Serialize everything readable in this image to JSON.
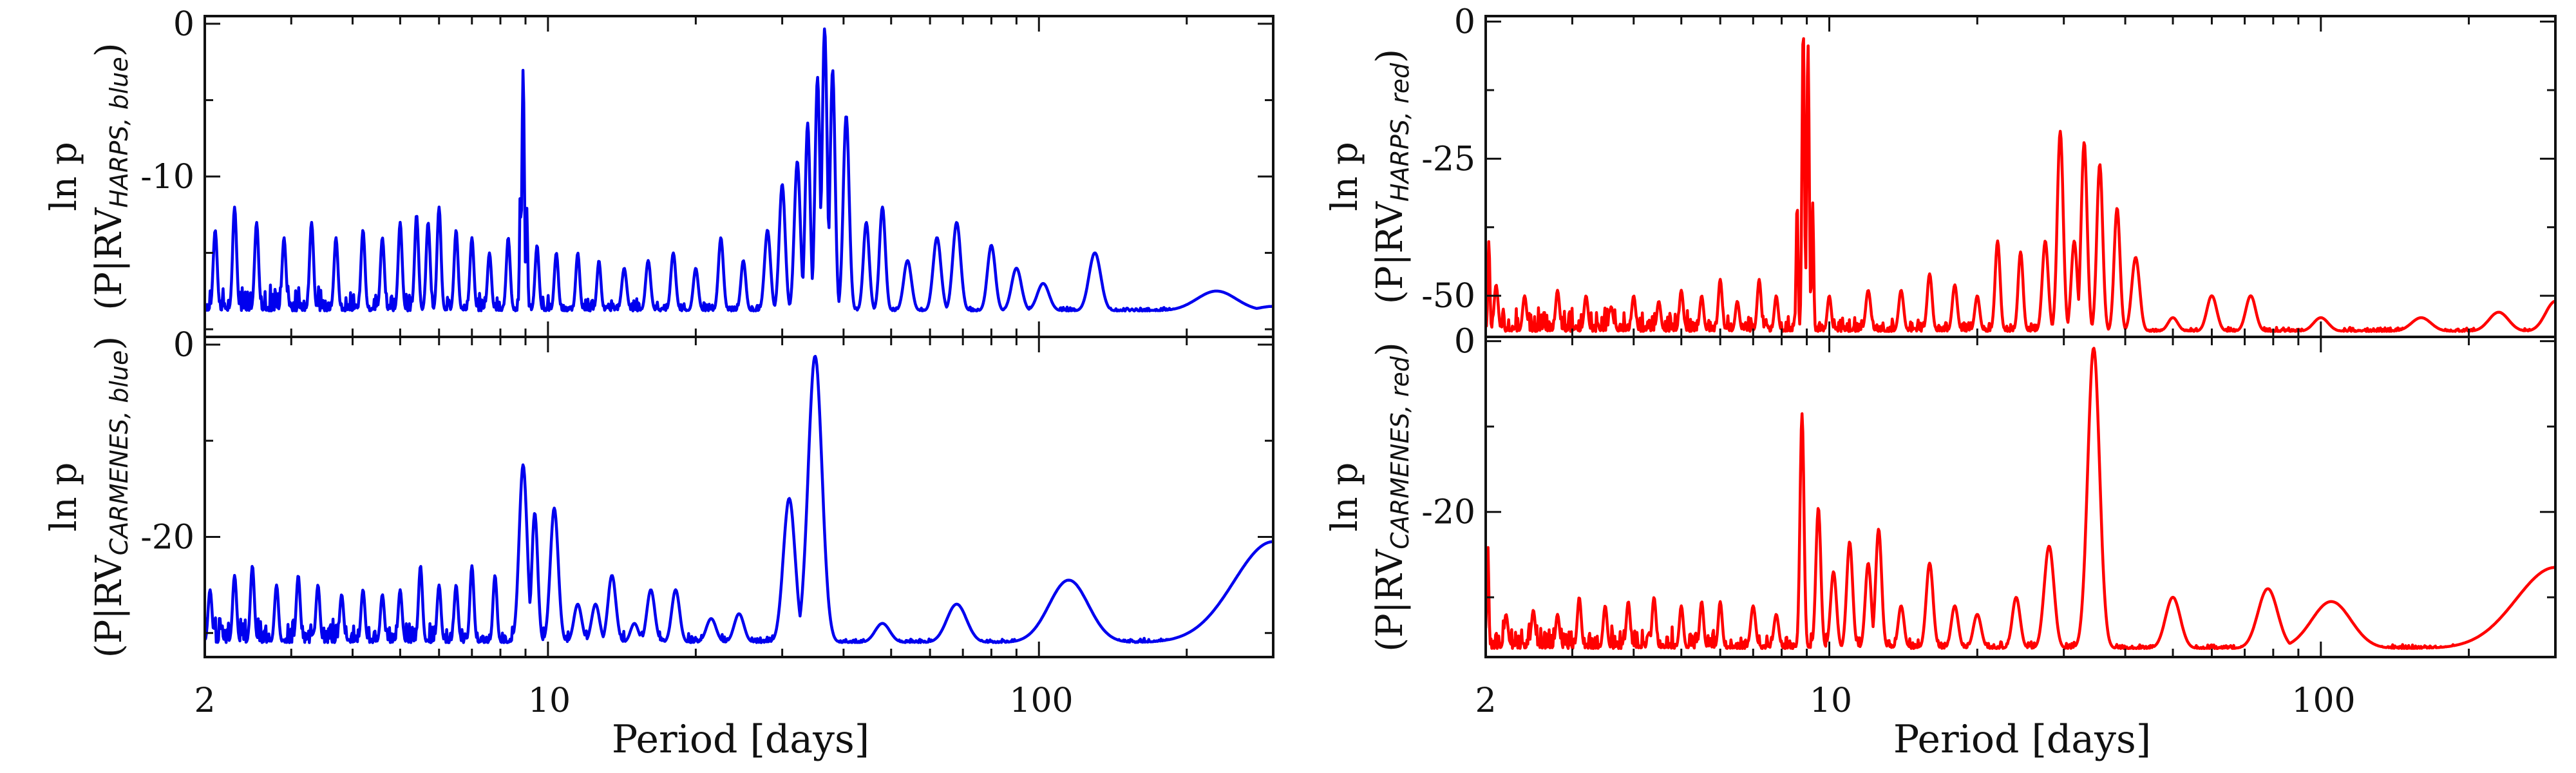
{
  "chart_data": [
    {
      "id": "harps_blue",
      "type": "line",
      "xscale": "log",
      "xlim": [
        2,
        300
      ],
      "ylim": [
        -20.5,
        0.5
      ],
      "yticks": [
        0,
        -10
      ],
      "ylabel_line1": "ln p",
      "ylabel_prefix": "(P|RV",
      "ylabel_sub": "HARPS, blue",
      "ylabel_suffix": ")",
      "color": "#0000ee",
      "series": [
        {
          "peaks": [
            [
              2.1,
              -13.5,
              0.004
            ],
            [
              2.3,
              -12.0,
              0.004
            ],
            [
              2.55,
              -13.0,
              0.004
            ],
            [
              2.9,
              -14.0,
              0.004
            ],
            [
              3.3,
              -13.0,
              0.004
            ],
            [
              3.7,
              -14.0,
              0.004
            ],
            [
              4.2,
              -13.5,
              0.004
            ],
            [
              4.6,
              -14.0,
              0.004
            ],
            [
              5.0,
              -13.0,
              0.004
            ],
            [
              5.4,
              -12.5,
              0.004
            ],
            [
              5.7,
              -13.0,
              0.004
            ],
            [
              6.0,
              -12.0,
              0.004
            ],
            [
              6.5,
              -13.5,
              0.004
            ],
            [
              7.0,
              -14.0,
              0.004
            ],
            [
              7.6,
              -15.0,
              0.004
            ],
            [
              8.3,
              -14.0,
              0.004
            ],
            [
              8.78,
              -11.0,
              0.0015
            ],
            [
              8.9,
              -3.0,
              0.0025
            ],
            [
              9.05,
              -12.0,
              0.002
            ],
            [
              9.5,
              -14.5,
              0.004
            ],
            [
              10.4,
              -15.0,
              0.004
            ],
            [
              11.5,
              -15.0,
              0.004
            ],
            [
              12.7,
              -15.5,
              0.004
            ],
            [
              14.3,
              -16.0,
              0.005
            ],
            [
              16.0,
              -15.5,
              0.005
            ],
            [
              18.0,
              -15.0,
              0.005
            ],
            [
              20.0,
              -16.0,
              0.005
            ],
            [
              22.5,
              -14.0,
              0.005
            ],
            [
              25.0,
              -15.5,
              0.005
            ],
            [
              28.0,
              -13.5,
              0.006
            ],
            [
              30.0,
              -10.5,
              0.006
            ],
            [
              32.2,
              -9.0,
              0.006
            ],
            [
              33.8,
              -6.5,
              0.005
            ],
            [
              35.4,
              -3.5,
              0.005
            ],
            [
              36.6,
              -0.3,
              0.005
            ],
            [
              38.0,
              -3.0,
              0.005
            ],
            [
              40.5,
              -6.0,
              0.006
            ],
            [
              44.5,
              -13.0,
              0.006
            ],
            [
              48.0,
              -12.0,
              0.006
            ],
            [
              54.0,
              -15.5,
              0.008
            ],
            [
              62.0,
              -14.0,
              0.008
            ],
            [
              68.0,
              -13.0,
              0.008
            ],
            [
              80.0,
              -14.5,
              0.008
            ],
            [
              90.0,
              -16.0,
              0.01
            ],
            [
              102.0,
              -17.0,
              0.012
            ],
            [
              130.0,
              -15.0,
              0.012
            ],
            [
              162.0,
              -19.0,
              0.02
            ],
            [
              230.0,
              -17.5,
              0.04
            ],
            [
              300.0,
              -18.5,
              0.03
            ]
          ],
          "floor": -18.8
        }
      ]
    },
    {
      "id": "carmenes_blue",
      "type": "line",
      "xscale": "log",
      "xlim": [
        2,
        300
      ],
      "ylim": [
        -32.5,
        0.8
      ],
      "yticks": [
        0,
        -20
      ],
      "ylabel_line1": "ln p",
      "ylabel_prefix": "(P|RV",
      "ylabel_sub": "CARMENES, blue",
      "ylabel_suffix": ")",
      "color": "#0000ee",
      "series": [
        {
          "peaks": [
            [
              2.05,
              -25.5,
              0.004
            ],
            [
              2.3,
              -24.0,
              0.004
            ],
            [
              2.5,
              -23.0,
              0.004
            ],
            [
              2.8,
              -25.0,
              0.004
            ],
            [
              3.1,
              -24.0,
              0.004
            ],
            [
              3.4,
              -25.0,
              0.004
            ],
            [
              3.8,
              -26.0,
              0.004
            ],
            [
              4.2,
              -25.5,
              0.004
            ],
            [
              4.6,
              -26.0,
              0.004
            ],
            [
              5.0,
              -25.5,
              0.004
            ],
            [
              5.5,
              -23.0,
              0.004
            ],
            [
              6.0,
              -25.0,
              0.004
            ],
            [
              6.5,
              -25.0,
              0.004
            ],
            [
              7.0,
              -23.0,
              0.004
            ],
            [
              7.8,
              -24.0,
              0.004
            ],
            [
              8.9,
              -12.5,
              0.008
            ],
            [
              9.4,
              -17.5,
              0.006
            ],
            [
              10.3,
              -17.0,
              0.008
            ],
            [
              11.5,
              -27.0,
              0.008
            ],
            [
              12.5,
              -27.0,
              0.008
            ],
            [
              13.5,
              -24.0,
              0.008
            ],
            [
              15.0,
              -29.0,
              0.008
            ],
            [
              16.2,
              -25.5,
              0.008
            ],
            [
              18.2,
              -25.5,
              0.008
            ],
            [
              21.5,
              -28.5,
              0.01
            ],
            [
              24.5,
              -28.0,
              0.01
            ],
            [
              31.0,
              -16.0,
              0.012
            ],
            [
              35.0,
              -1.2,
              0.014
            ],
            [
              48.0,
              -29.0,
              0.015
            ],
            [
              68.0,
              -27.0,
              0.02
            ],
            [
              115.0,
              -24.5,
              0.04
            ],
            [
              300.0,
              -20.5,
              0.08
            ]
          ],
          "floor": -31.0
        }
      ]
    },
    {
      "id": "harps_red",
      "type": "line",
      "xscale": "log",
      "xlim": [
        2,
        300
      ],
      "ylim": [
        -57.5,
        1.0
      ],
      "yticks": [
        0,
        -25,
        -50
      ],
      "ylabel_line1": "ln p",
      "ylabel_prefix": "(P|RV",
      "ylabel_sub": "HARPS, red",
      "ylabel_suffix": ")",
      "color": "#ff0000",
      "series": [
        {
          "peaks": [
            [
              2.03,
              -40.0,
              0.002
            ],
            [
              2.1,
              -48.0,
              0.004
            ],
            [
              2.4,
              -50.0,
              0.004
            ],
            [
              2.8,
              -49.0,
              0.004
            ],
            [
              3.2,
              -50.0,
              0.004
            ],
            [
              3.6,
              -52.0,
              0.004
            ],
            [
              4.0,
              -50.0,
              0.004
            ],
            [
              4.5,
              -51.0,
              0.004
            ],
            [
              5.0,
              -49.0,
              0.004
            ],
            [
              5.5,
              -50.0,
              0.004
            ],
            [
              6.0,
              -47.0,
              0.004
            ],
            [
              6.5,
              -51.0,
              0.004
            ],
            [
              7.2,
              -47.0,
              0.004
            ],
            [
              7.8,
              -50.0,
              0.004
            ],
            [
              8.6,
              -33.0,
              0.002
            ],
            [
              8.85,
              -1.0,
              0.0025
            ],
            [
              9.05,
              -4.0,
              0.0025
            ],
            [
              9.25,
              -33.0,
              0.002
            ],
            [
              10.0,
              -50.0,
              0.004
            ],
            [
              12.0,
              -49.0,
              0.005
            ],
            [
              14.0,
              -49.0,
              0.005
            ],
            [
              16.0,
              -46.0,
              0.005
            ],
            [
              18.0,
              -48.0,
              0.005
            ],
            [
              20.0,
              -50.0,
              0.005
            ],
            [
              22.0,
              -40.0,
              0.005
            ],
            [
              24.5,
              -42.0,
              0.005
            ],
            [
              27.5,
              -40.0,
              0.006
            ],
            [
              29.5,
              -20.0,
              0.006
            ],
            [
              31.5,
              -40.0,
              0.006
            ],
            [
              33.0,
              -22.0,
              0.006
            ],
            [
              35.5,
              -26.0,
              0.006
            ],
            [
              38.5,
              -34.0,
              0.006
            ],
            [
              42.0,
              -43.0,
              0.008
            ],
            [
              50.0,
              -54.0,
              0.01
            ],
            [
              60.0,
              -50.0,
              0.01
            ],
            [
              72.0,
              -50.0,
              0.01
            ],
            [
              100.0,
              -54.0,
              0.015
            ],
            [
              160.0,
              -54.0,
              0.02
            ],
            [
              230.0,
              -53.0,
              0.02
            ],
            [
              300.0,
              -51.0,
              0.02
            ]
          ],
          "floor": -56.5
        }
      ]
    },
    {
      "id": "carmenes_red",
      "type": "line",
      "xscale": "log",
      "xlim": [
        2,
        300
      ],
      "ylim": [
        -37.0,
        0.5
      ],
      "yticks": [
        0,
        -20
      ],
      "ylabel_line1": "ln p",
      "ylabel_prefix": "(P|RV",
      "ylabel_sub": "CARMENES, red",
      "ylabel_suffix": ")",
      "color": "#ff0000",
      "series": [
        {
          "peaks": [
            [
              2.02,
              -24.0,
              0.002
            ],
            [
              2.2,
              -32.0,
              0.004
            ],
            [
              2.5,
              -31.5,
              0.004
            ],
            [
              2.8,
              -32.0,
              0.004
            ],
            [
              3.1,
              -30.0,
              0.004
            ],
            [
              3.5,
              -31.0,
              0.004
            ],
            [
              3.9,
              -30.5,
              0.004
            ],
            [
              4.4,
              -30.0,
              0.004
            ],
            [
              5.0,
              -31.0,
              0.004
            ],
            [
              5.5,
              -30.5,
              0.004
            ],
            [
              6.0,
              -30.5,
              0.004
            ],
            [
              7.0,
              -31.0,
              0.005
            ],
            [
              7.8,
              -32.0,
              0.005
            ],
            [
              8.8,
              -8.5,
              0.004
            ],
            [
              9.5,
              -19.5,
              0.005
            ],
            [
              10.2,
              -27.0,
              0.006
            ],
            [
              11.0,
              -23.5,
              0.006
            ],
            [
              12.0,
              -26.0,
              0.006
            ],
            [
              12.6,
              -22.0,
              0.006
            ],
            [
              14.0,
              -31.0,
              0.006
            ],
            [
              16.0,
              -26.0,
              0.007
            ],
            [
              18.0,
              -31.0,
              0.007
            ],
            [
              20.0,
              -32.0,
              0.008
            ],
            [
              24.0,
              -30.0,
              0.008
            ],
            [
              28.0,
              -24.0,
              0.01
            ],
            [
              34.5,
              -0.8,
              0.012
            ],
            [
              50.0,
              -30.0,
              0.015
            ],
            [
              78.0,
              -29.0,
              0.02
            ],
            [
              105.0,
              -30.5,
              0.04
            ],
            [
              300.0,
              -26.5,
              0.08
            ]
          ],
          "floor": -36.0
        }
      ]
    }
  ],
  "panels_xlabel": "Period [days]",
  "xtick_labels": [
    "2",
    "10",
    "100"
  ],
  "xtick_values": [
    2,
    10,
    100
  ]
}
